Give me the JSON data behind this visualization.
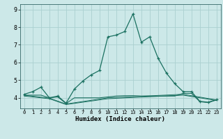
{
  "xlabel": "Humidex (Indice chaleur)",
  "bg_color": "#cce8e8",
  "grid_color": "#aad0d0",
  "line_color": "#1a7060",
  "xlim": [
    -0.5,
    23.5
  ],
  "ylim": [
    3.4,
    9.3
  ],
  "xticks": [
    0,
    1,
    2,
    3,
    4,
    5,
    6,
    7,
    8,
    9,
    10,
    11,
    12,
    13,
    14,
    15,
    16,
    17,
    18,
    19,
    20,
    21,
    22,
    23
  ],
  "yticks": [
    4,
    5,
    6,
    7,
    8,
    9
  ],
  "line1_x": [
    0,
    1,
    2,
    3,
    4,
    5,
    6,
    7,
    8,
    9,
    10,
    11,
    12,
    13,
    14,
    15,
    16,
    17,
    18,
    19,
    20,
    21,
    22,
    23
  ],
  "line1_y": [
    4.2,
    4.35,
    4.6,
    4.0,
    4.1,
    3.7,
    4.5,
    4.95,
    5.3,
    5.55,
    7.45,
    7.55,
    7.75,
    8.75,
    7.15,
    7.45,
    6.25,
    5.4,
    4.8,
    4.35,
    4.35,
    3.8,
    3.75,
    3.9
  ],
  "line2_x": [
    0,
    1,
    2,
    3,
    4,
    5,
    6,
    7,
    8,
    9,
    10,
    11,
    12,
    13,
    14,
    15,
    16,
    17,
    18,
    19,
    20,
    21,
    22,
    23
  ],
  "line2_y": [
    4.15,
    4.15,
    4.15,
    4.0,
    4.05,
    3.68,
    4.0,
    4.0,
    4.0,
    4.0,
    4.05,
    4.1,
    4.12,
    4.12,
    4.1,
    4.1,
    4.1,
    4.1,
    4.1,
    4.25,
    4.25,
    3.78,
    3.73,
    3.88
  ],
  "line3_x": [
    0,
    3,
    5,
    10,
    19,
    23
  ],
  "line3_y": [
    4.15,
    3.98,
    3.65,
    4.0,
    4.2,
    3.88
  ],
  "line4_x": [
    0,
    3,
    5,
    10,
    19,
    23
  ],
  "line4_y": [
    4.1,
    3.95,
    3.62,
    3.95,
    4.15,
    3.85
  ]
}
